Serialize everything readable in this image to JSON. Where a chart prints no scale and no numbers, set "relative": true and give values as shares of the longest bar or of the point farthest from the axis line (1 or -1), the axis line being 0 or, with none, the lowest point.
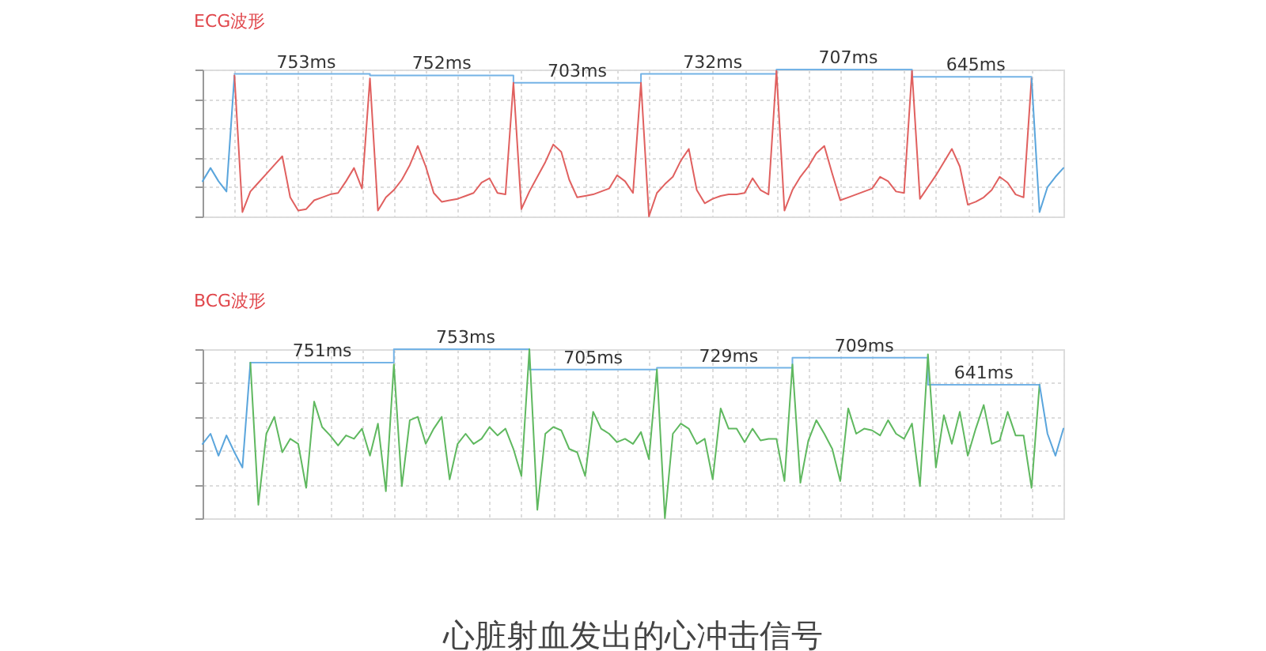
{
  "chart_data": [
    {
      "type": "line",
      "title": "ECG波形",
      "relative": true,
      "grid": true,
      "annotations": [
        {
          "text": "753ms",
          "y": 0.97
        },
        {
          "text": "752ms",
          "y": 0.96
        },
        {
          "text": "703ms",
          "y": 0.91
        },
        {
          "text": "732ms",
          "y": 0.97
        },
        {
          "text": "707ms",
          "y": 1
        },
        {
          "text": "645ms",
          "y": 0.95
        }
      ],
      "categories": [
        null,
        null,
        null,
        null,
        null,
        null,
        null,
        null,
        null,
        null,
        null,
        null,
        null,
        null,
        null,
        null,
        null,
        null,
        null,
        null,
        null,
        null,
        null,
        null,
        null,
        null,
        null,
        null,
        null,
        null,
        null,
        null,
        null,
        null,
        null,
        null,
        null,
        null,
        null,
        null,
        null,
        null,
        null,
        null,
        null,
        null,
        null,
        null,
        null,
        null,
        null,
        null,
        null,
        null,
        null,
        null,
        null,
        null,
        null,
        null,
        null,
        null,
        null,
        null,
        null,
        null,
        null,
        null,
        null,
        null,
        null,
        null,
        null,
        null,
        null,
        null,
        null,
        null,
        null,
        null,
        null,
        null,
        null,
        null,
        null,
        null,
        null,
        null,
        null,
        null,
        null,
        null,
        null,
        null,
        null,
        null,
        null,
        null,
        null,
        null,
        null,
        null,
        null,
        null,
        null,
        null,
        null,
        null,
        null
      ],
      "series": [
        {
          "type": "step",
          "color": "#74b3e6",
          "values": [
            null,
            null,
            null,
            null,
            0.97,
            0.97,
            0.97,
            0.97,
            0.97,
            0.97,
            0.97,
            0.97,
            0.97,
            0.97,
            0.97,
            0.97,
            0.97,
            0.97,
            0.97,
            0.97,
            0.97,
            0.96,
            0.96,
            0.96,
            0.96,
            0.96,
            0.96,
            0.96,
            0.96,
            0.96,
            0.96,
            0.96,
            0.96,
            0.96,
            0.96,
            0.96,
            0.96,
            0.96,
            0.96,
            0.91,
            0.91,
            0.91,
            0.91,
            0.91,
            0.91,
            0.91,
            0.91,
            0.91,
            0.91,
            0.91,
            0.91,
            0.91,
            0.91,
            0.91,
            0.91,
            0.97,
            0.97,
            0.97,
            0.97,
            0.97,
            0.97,
            0.97,
            0.97,
            0.97,
            0.97,
            0.97,
            0.97,
            0.97,
            0.97,
            0.97,
            0.97,
            0.97,
            1,
            1,
            1,
            1,
            1,
            1,
            1,
            1,
            1,
            1,
            1,
            1,
            1,
            1,
            1,
            1,
            1,
            0.95,
            0.95,
            0.95,
            0.95,
            0.95,
            0.95,
            0.95,
            0.95,
            0.95,
            0.95,
            0.95,
            0.95,
            0.95,
            0.95,
            0.95,
            0.95,
            null,
            null,
            null,
            null
          ]
        },
        {
          "color": "#5aa5dc",
          "values": [
            0.24,
            0.33,
            0.24,
            0.17,
            0.96,
            null,
            null,
            null,
            null,
            null,
            null,
            null,
            null,
            null,
            null,
            null,
            null,
            null,
            null,
            null,
            null,
            null,
            null,
            null,
            null,
            null,
            null,
            null,
            null,
            null,
            null,
            null,
            null,
            null,
            null,
            null,
            null,
            null,
            null,
            null,
            null,
            null,
            null,
            null,
            null,
            null,
            null,
            null,
            null,
            null,
            null,
            null,
            null,
            null,
            null,
            null,
            null,
            null,
            null,
            null,
            null,
            null,
            null,
            null,
            null,
            null,
            null,
            null,
            null,
            null,
            null,
            null,
            null,
            null,
            null,
            null,
            null,
            null,
            null,
            null,
            null,
            null,
            null,
            null,
            null,
            null,
            null,
            null,
            null,
            null,
            null,
            null,
            null,
            null,
            null,
            null,
            null,
            null,
            null,
            null,
            null,
            null,
            null,
            null,
            null,
            null,
            null,
            null,
            null
          ]
        },
        {
          "color": "#e0605f",
          "values": [
            null,
            null,
            null,
            null,
            0.96,
            0.03,
            0.17,
            0.23,
            0.29,
            0.35,
            0.41,
            0.13,
            0.04,
            0.05,
            0.11,
            0.13,
            0.15,
            0.16,
            0.24,
            0.33,
            0.19,
            0.94,
            0.04,
            0.13,
            0.18,
            0.25,
            0.35,
            0.48,
            0.34,
            0.16,
            0.1,
            0.11,
            0.12,
            0.14,
            0.16,
            0.23,
            0.26,
            0.16,
            0.15,
            0.91,
            0.05,
            0.17,
            0.27,
            0.37,
            0.49,
            0.44,
            0.25,
            0.13,
            0.14,
            0.15,
            0.17,
            0.19,
            0.28,
            0.24,
            0.16,
            0.91,
            0,
            0.16,
            0.22,
            0.27,
            0.38,
            0.46,
            0.18,
            0.09,
            0.12,
            0.14,
            0.15,
            0.15,
            0.16,
            0.26,
            0.18,
            0.15,
            0.99,
            0.04,
            0.18,
            0.27,
            0.34,
            0.43,
            0.48,
            0.29,
            0.11,
            0.13,
            0.15,
            0.17,
            0.19,
            0.27,
            0.24,
            0.17,
            0.16,
            0.99,
            0.12,
            0.2,
            0.28,
            0.37,
            0.46,
            0.34,
            0.08,
            0.1,
            0.13,
            0.18,
            0.27,
            0.23,
            0.15,
            0.13,
            0.94,
            null,
            null,
            null,
            null
          ]
        },
        {
          "color": "#5aa5dc",
          "values": [
            null,
            null,
            null,
            null,
            null,
            null,
            null,
            null,
            null,
            null,
            null,
            null,
            null,
            null,
            null,
            null,
            null,
            null,
            null,
            null,
            null,
            null,
            null,
            null,
            null,
            null,
            null,
            null,
            null,
            null,
            null,
            null,
            null,
            null,
            null,
            null,
            null,
            null,
            null,
            null,
            null,
            null,
            null,
            null,
            null,
            null,
            null,
            null,
            null,
            null,
            null,
            null,
            null,
            null,
            null,
            null,
            null,
            null,
            null,
            null,
            null,
            null,
            null,
            null,
            null,
            null,
            null,
            null,
            null,
            null,
            null,
            null,
            null,
            null,
            null,
            null,
            null,
            null,
            null,
            null,
            null,
            null,
            null,
            null,
            null,
            null,
            null,
            null,
            null,
            null,
            null,
            null,
            null,
            null,
            null,
            null,
            null,
            null,
            null,
            null,
            null,
            null,
            null,
            null,
            0.94,
            0.03,
            0.2,
            0.27,
            0.33
          ]
        }
      ]
    },
    {
      "type": "line",
      "title": "BCG波形",
      "relative": true,
      "grid": true,
      "annotations": [
        {
          "text": "751ms",
          "y": 0.92
        },
        {
          "text": "753ms",
          "y": 1
        },
        {
          "text": "705ms",
          "y": 0.88
        },
        {
          "text": "729ms",
          "y": 0.89
        },
        {
          "text": "709ms",
          "y": 0.95
        },
        {
          "text": "641ms",
          "y": 0.79
        },
        "心脏射血发出的心冲击信号"
      ],
      "categories": [
        null,
        null,
        null,
        null,
        null,
        null,
        null,
        null,
        null,
        null,
        null,
        null,
        null,
        null,
        null,
        null,
        null,
        null,
        null,
        null,
        null,
        null,
        null,
        null,
        null,
        null,
        null,
        null,
        null,
        null,
        null,
        null,
        null,
        null,
        null,
        null,
        null,
        null,
        null,
        null,
        null,
        null,
        null,
        null,
        null,
        null,
        null,
        null,
        null,
        null,
        null,
        null,
        null,
        null,
        null,
        null,
        null,
        null,
        null,
        null,
        null,
        null,
        null,
        null,
        null,
        null,
        null,
        null,
        null,
        null,
        null,
        null,
        null,
        null,
        null,
        null,
        null,
        null,
        null,
        null,
        null,
        null,
        null,
        null,
        null,
        null,
        null,
        null,
        null,
        null,
        null,
        null,
        null,
        null,
        null,
        null,
        null,
        null,
        null,
        null,
        null,
        null,
        null,
        null,
        null,
        null,
        null,
        null,
        null
      ],
      "series": [
        {
          "type": "step",
          "color": "#74b3e6",
          "values": [
            null,
            null,
            null,
            null,
            null,
            null,
            0.92,
            0.92,
            0.92,
            0.92,
            0.92,
            0.92,
            0.92,
            0.92,
            0.92,
            0.92,
            0.92,
            0.92,
            0.92,
            0.92,
            0.92,
            0.92,
            0.92,
            0.92,
            1,
            1,
            1,
            1,
            1,
            1,
            1,
            1,
            1,
            1,
            1,
            1,
            1,
            1,
            1,
            1,
            1,
            0.88,
            0.88,
            0.88,
            0.88,
            0.88,
            0.88,
            0.88,
            0.88,
            0.88,
            0.88,
            0.88,
            0.88,
            0.88,
            0.88,
            0.88,
            0.88,
            0.89,
            0.89,
            0.89,
            0.89,
            0.89,
            0.89,
            0.89,
            0.89,
            0.89,
            0.89,
            0.89,
            0.89,
            0.89,
            0.89,
            0.89,
            0.89,
            0.89,
            0.95,
            0.95,
            0.95,
            0.95,
            0.95,
            0.95,
            0.95,
            0.95,
            0.95,
            0.95,
            0.95,
            0.95,
            0.95,
            0.95,
            0.95,
            0.95,
            0.95,
            0.79,
            0.79,
            0.79,
            0.79,
            0.79,
            0.79,
            0.79,
            0.79,
            0.79,
            0.79,
            0.79,
            0.79,
            0.79,
            0.79,
            0.79,
            null,
            null,
            null
          ]
        },
        {
          "color": "#5aa5dc",
          "values": [
            0.44,
            0.5,
            0.37,
            0.49,
            0.39,
            0.3,
            0.92,
            null,
            null,
            null,
            null,
            null,
            null,
            null,
            null,
            null,
            null,
            null,
            null,
            null,
            null,
            null,
            null,
            null,
            null,
            null,
            null,
            null,
            null,
            null,
            null,
            null,
            null,
            null,
            null,
            null,
            null,
            null,
            null,
            null,
            null,
            null,
            null,
            null,
            null,
            null,
            null,
            null,
            null,
            null,
            null,
            null,
            null,
            null,
            null,
            null,
            null,
            null,
            null,
            null,
            null,
            null,
            null,
            null,
            null,
            null,
            null,
            null,
            null,
            null,
            null,
            null,
            null,
            null,
            null,
            null,
            null,
            null,
            null,
            null,
            null,
            null,
            null,
            null,
            null,
            null,
            null,
            null,
            null,
            null,
            null,
            null,
            null,
            null,
            null,
            null,
            null,
            null,
            null,
            null,
            null,
            null,
            null,
            null,
            null,
            null,
            null,
            null,
            null
          ]
        },
        {
          "color": "#5fb85f",
          "values": [
            null,
            null,
            null,
            null,
            null,
            null,
            0.92,
            0.08,
            0.5,
            0.6,
            0.39,
            0.47,
            0.44,
            0.18,
            0.69,
            0.54,
            0.49,
            0.43,
            0.49,
            0.47,
            0.53,
            0.37,
            0.56,
            0.16,
            0.91,
            0.19,
            0.58,
            0.6,
            0.44,
            0.53,
            0.6,
            0.23,
            0.44,
            0.5,
            0.44,
            0.47,
            0.54,
            0.49,
            0.53,
            0.41,
            0.25,
            1,
            0.05,
            0.5,
            0.54,
            0.52,
            0.41,
            0.39,
            0.25,
            0.63,
            0.53,
            0.5,
            0.45,
            0.47,
            0.44,
            0.51,
            0.35,
            0.88,
            0,
            0.5,
            0.56,
            0.53,
            0.44,
            0.47,
            0.23,
            0.65,
            0.53,
            0.53,
            0.45,
            0.53,
            0.46,
            0.47,
            0.47,
            0.22,
            0.91,
            0.21,
            0.46,
            0.58,
            0.5,
            0.41,
            0.22,
            0.65,
            0.5,
            0.53,
            0.52,
            0.49,
            0.58,
            0.5,
            0.47,
            0.56,
            0.19,
            0.97,
            0.3,
            0.61,
            0.44,
            0.63,
            0.37,
            0.53,
            0.67,
            0.44,
            0.46,
            0.63,
            0.49,
            0.49,
            0.18,
            0.79,
            null,
            null,
            null
          ]
        },
        {
          "color": "#5aa5dc",
          "values": [
            null,
            null,
            null,
            null,
            null,
            null,
            null,
            null,
            null,
            null,
            null,
            null,
            null,
            null,
            null,
            null,
            null,
            null,
            null,
            null,
            null,
            null,
            null,
            null,
            null,
            null,
            null,
            null,
            null,
            null,
            null,
            null,
            null,
            null,
            null,
            null,
            null,
            null,
            null,
            null,
            null,
            null,
            null,
            null,
            null,
            null,
            null,
            null,
            null,
            null,
            null,
            null,
            null,
            null,
            null,
            null,
            null,
            null,
            null,
            null,
            null,
            null,
            null,
            null,
            null,
            null,
            null,
            null,
            null,
            null,
            null,
            null,
            null,
            null,
            null,
            null,
            null,
            null,
            null,
            null,
            null,
            null,
            null,
            null,
            null,
            null,
            null,
            null,
            null,
            null,
            null,
            null,
            null,
            null,
            null,
            null,
            null,
            null,
            null,
            null,
            null,
            null,
            null,
            null,
            null,
            0.79,
            0.5,
            0.37,
            0.53
          ]
        }
      ]
    }
  ]
}
